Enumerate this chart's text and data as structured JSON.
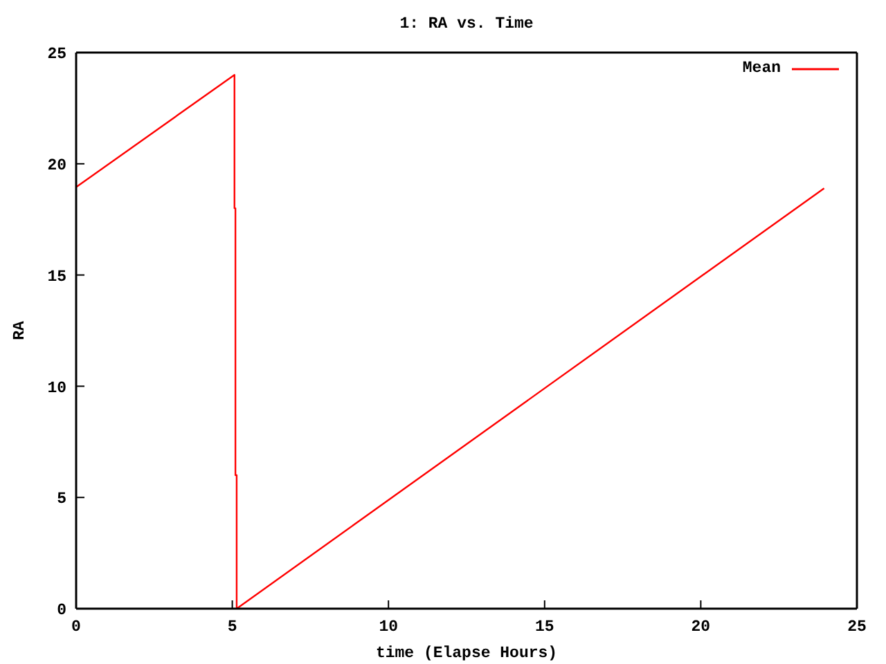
{
  "chart_data": {
    "type": "line",
    "title": "1: RA vs. Time",
    "xlabel": "time (Elapse Hours)",
    "ylabel": "RA",
    "x": [
      0,
      5.07,
      5.07,
      5.1,
      5.1,
      5.14,
      5.14,
      23.95
    ],
    "series": [
      {
        "name": "Mean",
        "color": "#ff0000",
        "values": [
          18.95,
          24,
          18,
          18,
          6,
          6,
          0,
          18.9
        ]
      }
    ],
    "xlim": [
      0,
      25
    ],
    "ylim": [
      0,
      25
    ],
    "xticks": [
      0,
      5,
      10,
      15,
      20,
      25
    ],
    "yticks": [
      0,
      5,
      10,
      15,
      20,
      25
    ],
    "legend": "top right"
  }
}
